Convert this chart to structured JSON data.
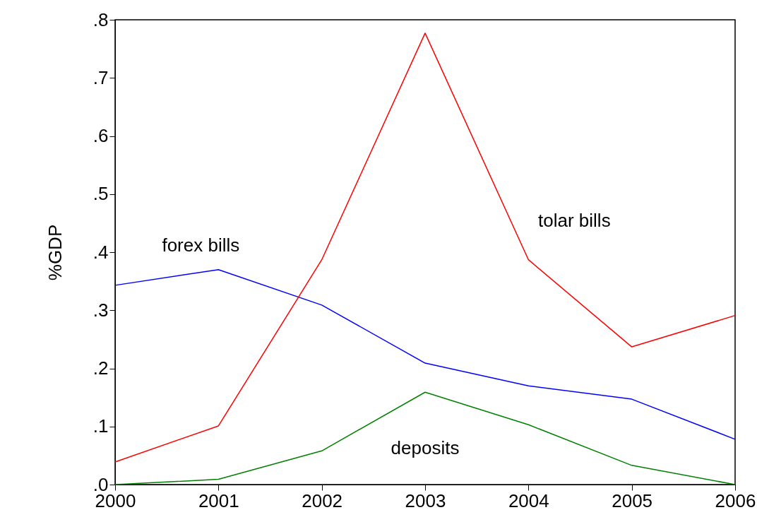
{
  "chart_data": {
    "type": "line",
    "ylabel": "%GDP",
    "categories": [
      "2000",
      "2001",
      "2002",
      "2003",
      "2004",
      "2005",
      "2006"
    ],
    "series": [
      {
        "name": "forex bills",
        "color": "#0000ff",
        "values": [
          0.343,
          0.37,
          0.309,
          0.209,
          0.17,
          0.147,
          0.078
        ]
      },
      {
        "name": "tolar bills",
        "color": "#ff0000",
        "values": [
          0.039,
          0.101,
          0.387,
          0.777,
          0.387,
          0.237,
          0.291
        ]
      },
      {
        "name": "deposits",
        "color": "#008000",
        "values": [
          0.0,
          0.009,
          0.058,
          0.159,
          0.103,
          0.033,
          0.0
        ]
      }
    ],
    "ylim": [
      0,
      0.8
    ],
    "yticks": [
      {
        "value": 0,
        "label": ".0"
      },
      {
        "value": 0.1,
        "label": ".1"
      },
      {
        "value": 0.2,
        "label": ".2"
      },
      {
        "value": 0.3,
        "label": ".3"
      },
      {
        "value": 0.4,
        "label": ".4"
      },
      {
        "value": 0.5,
        "label": ".5"
      },
      {
        "value": 0.6,
        "label": ".6"
      },
      {
        "value": 0.7,
        "label": ".7"
      },
      {
        "value": 0.8,
        "label": ".8"
      }
    ],
    "grid": false,
    "line_style": "solid",
    "marker": "none"
  }
}
